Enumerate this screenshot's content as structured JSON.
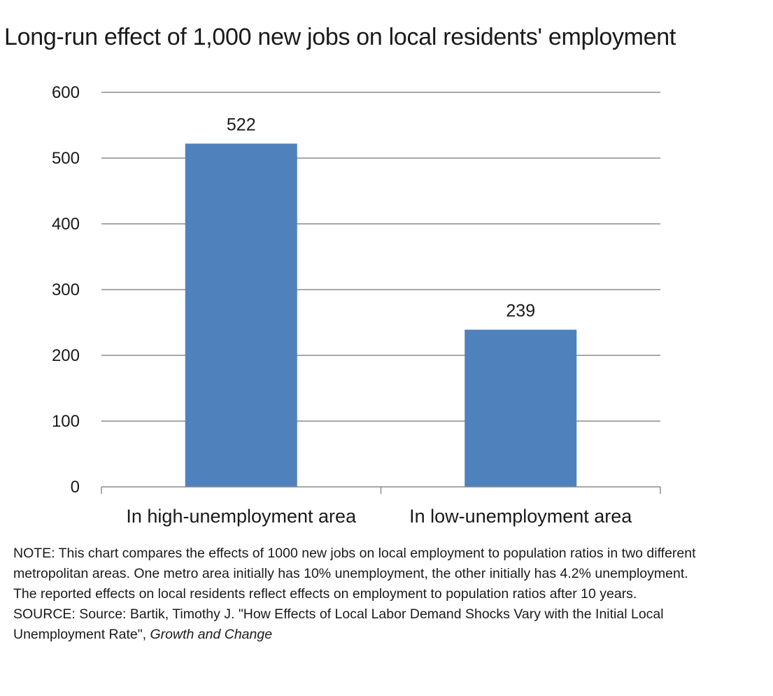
{
  "chart_data": {
    "type": "bar",
    "title": "Long-run effect of 1,000 new jobs on local residents' employment",
    "categories": [
      "In high-unemployment area",
      "In low-unemployment area"
    ],
    "values": [
      522,
      239
    ],
    "ylim": [
      0,
      600
    ],
    "yticks": [
      "0",
      "100",
      "200",
      "300",
      "400",
      "500",
      "600"
    ],
    "grid": true,
    "bar_color": "#4f81bd",
    "grid_color": "#8c8c8c"
  },
  "footnote": {
    "note": "NOTE: This chart compares the effects of 1000 new jobs on local employment to population ratios in two different metropolitan areas. One metro area initially has 10% unemployment, the other initially has 4.2% unemployment. The reported effects on local residents reflect effects on employment to population ratios after 10 years.",
    "source_main": "SOURCE: Source: Bartik, Timothy J. \"How Effects of Local Labor Demand Shocks Vary with the Initial Local Unemployment Rate\", ",
    "source_journal": "Growth and Change"
  }
}
